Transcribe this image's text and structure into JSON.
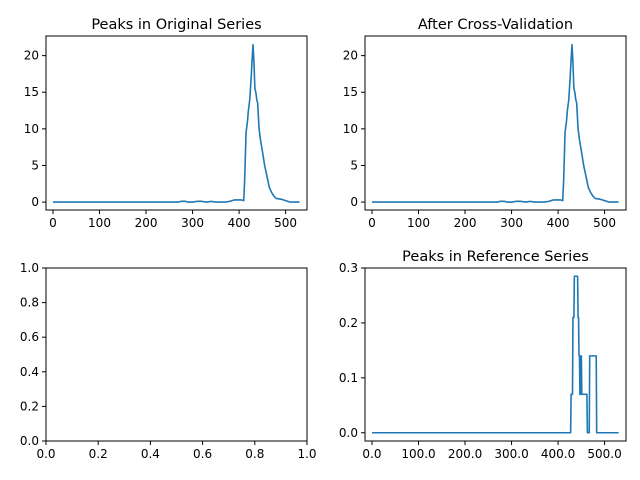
{
  "colors": {
    "series": "#1f77b4",
    "background": "#ffffff",
    "axes": "#000000"
  },
  "chart_data": [
    {
      "type": "line",
      "title": "Peaks in Original Series",
      "xlim": [
        -15,
        546
      ],
      "ylim": [
        -1.08,
        22.68
      ],
      "xticks": [
        0,
        100,
        200,
        300,
        400,
        500
      ],
      "yticks": [
        0,
        5,
        10,
        15,
        20
      ],
      "grid": false,
      "series": [
        {
          "x": [
            0,
            270,
            275,
            285,
            290,
            300,
            310,
            320,
            330,
            340,
            350,
            360,
            370,
            380,
            390,
            395,
            405,
            410,
            412,
            415,
            418,
            420,
            423,
            426,
            428,
            430,
            432,
            434,
            436,
            438,
            440,
            443,
            446,
            450,
            455,
            460,
            465,
            470,
            475,
            480,
            490,
            500,
            510,
            530
          ],
          "y": [
            0,
            0,
            0.1,
            0.1,
            0,
            0,
            0.1,
            0.1,
            0,
            0.1,
            0,
            0,
            0,
            0.1,
            0.3,
            0.3,
            0.3,
            0.2,
            3,
            9.5,
            11,
            12.5,
            14,
            17,
            19.5,
            21.5,
            19,
            15.5,
            15,
            14,
            13.5,
            10,
            8.5,
            7,
            5,
            3.5,
            2,
            1.3,
            0.8,
            0.5,
            0.4,
            0.2,
            0,
            0
          ]
        }
      ]
    },
    {
      "type": "line",
      "title": "After Cross-Validation",
      "xlim": [
        -15,
        546
      ],
      "ylim": [
        -1.08,
        22.68
      ],
      "xticks": [
        0,
        100,
        200,
        300,
        400,
        500
      ],
      "yticks": [
        0,
        5,
        10,
        15,
        20
      ],
      "grid": false,
      "series": [
        {
          "x": [
            0,
            270,
            275,
            285,
            290,
            300,
            310,
            320,
            330,
            340,
            350,
            360,
            370,
            380,
            390,
            395,
            405,
            410,
            412,
            415,
            418,
            420,
            423,
            426,
            428,
            430,
            432,
            434,
            436,
            438,
            440,
            443,
            446,
            450,
            455,
            460,
            465,
            470,
            475,
            480,
            490,
            500,
            510,
            530
          ],
          "y": [
            0,
            0,
            0.1,
            0.1,
            0,
            0,
            0.1,
            0.1,
            0,
            0.1,
            0,
            0,
            0,
            0.1,
            0.3,
            0.3,
            0.3,
            0.2,
            3,
            9.5,
            11,
            12.5,
            14,
            17,
            19.5,
            21.5,
            19,
            15.5,
            15,
            14,
            13.5,
            10,
            8.5,
            7,
            5,
            3.5,
            2,
            1.3,
            0.8,
            0.5,
            0.4,
            0.2,
            0,
            0
          ]
        }
      ]
    },
    {
      "type": "line",
      "title": "",
      "xlim": [
        0,
        1
      ],
      "ylim": [
        0,
        1
      ],
      "xticks": [
        0.0,
        0.2,
        0.4,
        0.6,
        0.8,
        1.0
      ],
      "yticks": [
        0.0,
        0.2,
        0.4,
        0.6,
        0.8,
        1.0
      ],
      "tick_decimals": 1,
      "grid": false,
      "series": []
    },
    {
      "type": "line",
      "title": "Peaks in Reference Series",
      "xlim": [
        -15,
        546
      ],
      "ylim": [
        -0.015,
        0.3
      ],
      "xticks": [
        0,
        100,
        200,
        300,
        400,
        500
      ],
      "yticks": [
        0.0,
        0.1,
        0.2,
        0.3
      ],
      "tick_decimals": 1,
      "grid": false,
      "series": [
        {
          "x": [
            0,
            427,
            428,
            431,
            432,
            434,
            435,
            442,
            443,
            444,
            445,
            446,
            447,
            448,
            449,
            450,
            451,
            462,
            463,
            467,
            468,
            470,
            471,
            482,
            483,
            530
          ],
          "y": [
            0,
            0,
            0.07,
            0.07,
            0.21,
            0.21,
            0.285,
            0.285,
            0.21,
            0.21,
            0.14,
            0.14,
            0.07,
            0.07,
            0.14,
            0.14,
            0.07,
            0.07,
            0,
            0,
            0.14,
            0.14,
            0.14,
            0.14,
            0,
            0
          ]
        }
      ]
    }
  ]
}
